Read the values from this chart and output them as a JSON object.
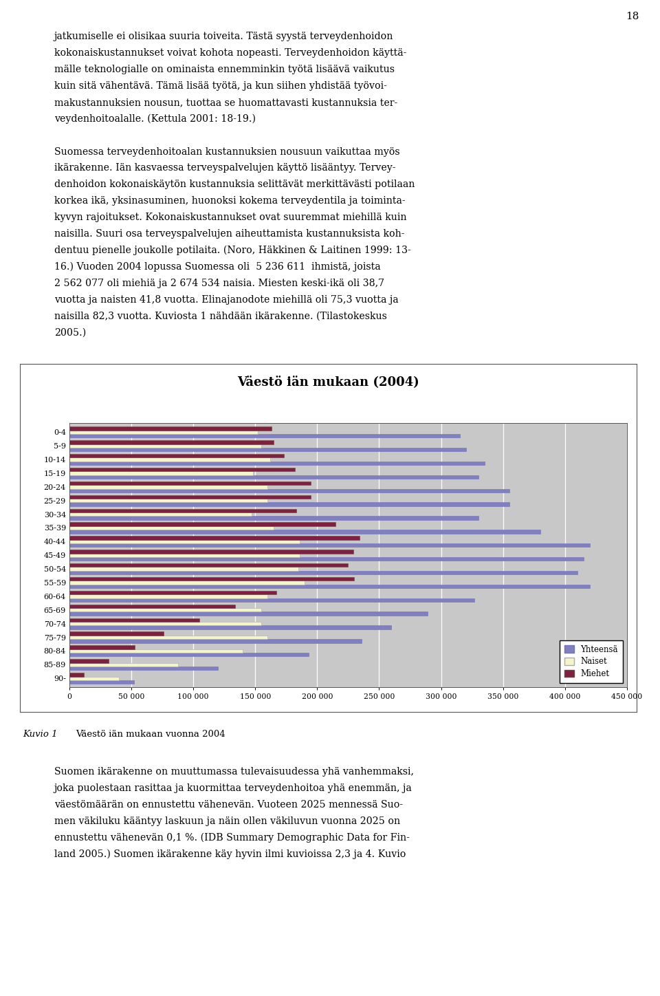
{
  "title": "Väestö iän mukaan (2004)",
  "age_groups": [
    "90-",
    "85-89",
    "80-84",
    "75-79",
    "70-74",
    "65-69",
    "60-64",
    "55-59",
    "50-54",
    "45-49",
    "40-44",
    "35-39",
    "30-34",
    "25-29",
    "20-24",
    "15-19",
    "10-14",
    "5-9",
    "0-4"
  ],
  "yhteensa": [
    52000,
    120000,
    193000,
    236000,
    260000,
    289000,
    327000,
    420000,
    410000,
    415000,
    420000,
    380000,
    330000,
    355000,
    355000,
    330000,
    335000,
    320000,
    315000
  ],
  "naiset": [
    40000,
    88000,
    140000,
    160000,
    155000,
    155000,
    160000,
    190000,
    185000,
    186000,
    186000,
    165000,
    147000,
    160000,
    160000,
    148000,
    162000,
    155000,
    152000
  ],
  "miehet": [
    12000,
    32000,
    53000,
    76000,
    105000,
    134000,
    167000,
    230000,
    225000,
    229000,
    234000,
    215000,
    183000,
    195000,
    195000,
    182000,
    173000,
    165000,
    163000
  ],
  "colors": {
    "yhteensa": "#8080c0",
    "naiset": "#f5f5cc",
    "miehet": "#802040"
  },
  "page_number": "18",
  "caption_label": "Kuvio 1",
  "caption_text": "Väestö iän mukaan vuonna 2004",
  "legend_labels": [
    "Yhteensä",
    "Naiset",
    "Miehet"
  ],
  "background_color": "#c8c8c8",
  "text_above_lines": [
    "jatkumiselle ei olisikaa suuria toiveita. Tästä syystä terveydenhoidon",
    "kokonaiskustannukset voivat kohota nopeasti. Terveydenhoidon käyttä-",
    "mälle teknologialle on ominaista ennemminkin työtä lisäävä vaikutus",
    "kuin sitä vähentävä. Tämä lisää työtä, ja kun siihen yhdistää työvoi-",
    "makustannuksien nousun, tuottaa se huomattavasti kustannuksia ter-",
    "veydenhoitoalalle. (Kettula 2001: 18-19.)",
    "",
    "Suomessa terveydenhoitoalan kustannuksien nousuun vaikuttaa myös",
    "ikärakenne. Iän kasvaessa terveyspalvelujen käyttö lisääntyy. Tervey-",
    "denhoidon kokonaiskäytön kustannuksia selittävät merkittävästi potilaan",
    "korkea ikä, yksinasuminen, huonoksi kokema terveydentila ja toiminta-",
    "kyvyn rajoitukset. Kokonaiskustannukset ovat suuremmat miehillä kuin",
    "naisilla. Suuri osa terveyspalvelujen aiheuttamista kustannuksista koh-",
    "dentuu pienelle joukolle potilaita. (Noro, Häkkinen & Laitinen 1999: 13-",
    "16.) Vuoden 2004 lopussa Suomessa oli  5 236 611  ihmistä, joista",
    "2 562 077 oli miehiä ja 2 674 534 naisia. Miesten keski-ikä oli 38,7",
    "vuotta ja naisten 41,8 vuotta. Elinajanodote miehillä oli 75,3 vuotta ja",
    "naisilla 82,3 vuotta. Kuviosta 1 nähdään ikärakenne. (Tilastokeskus",
    "2005.)"
  ],
  "text_below_lines": [
    "Suomen ikärakenne on muuttumassa tulevaisuudessa yhä vanhemmaksi,",
    "joka puolestaan rasittaa ja kuormittaa terveydenhoitoa yhä enemmän, ja",
    "väestömäärän on ennustettu vähenevän. Vuoteen 2025 mennessä Suo-",
    "men väkiluku kääntyy laskuun ja näin ollen väkiluvun vuonna 2025 on",
    "ennustettu vähenevän 0,1 %. (IDB Summary Demographic Data for Fin-",
    "land 2005.) Suomen ikärakenne käy hyvin ilmi kuvioissa 2,3 ja 4. Kuvio"
  ]
}
